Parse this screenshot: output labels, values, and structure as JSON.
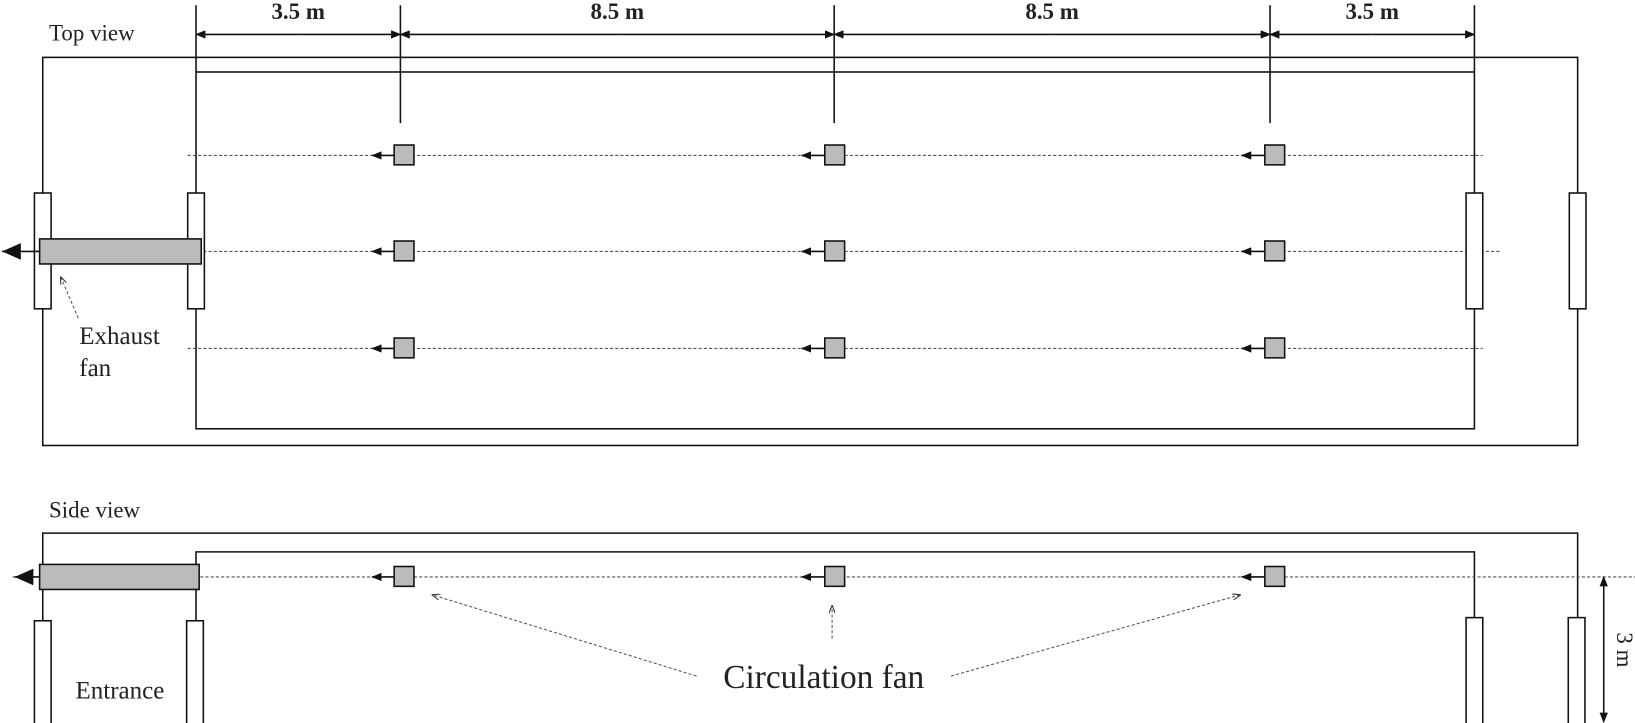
{
  "views": {
    "top": "Top view",
    "side": "Side view"
  },
  "dimensions": [
    "3.5 m",
    "8.5 m",
    "8.5 m",
    "3.5 m"
  ],
  "height": "3 m",
  "labels": {
    "exhaust_fan": [
      "Exhaust",
      "fan"
    ],
    "entrance": "Entrance",
    "circulation_fan": "Circulation fan"
  }
}
